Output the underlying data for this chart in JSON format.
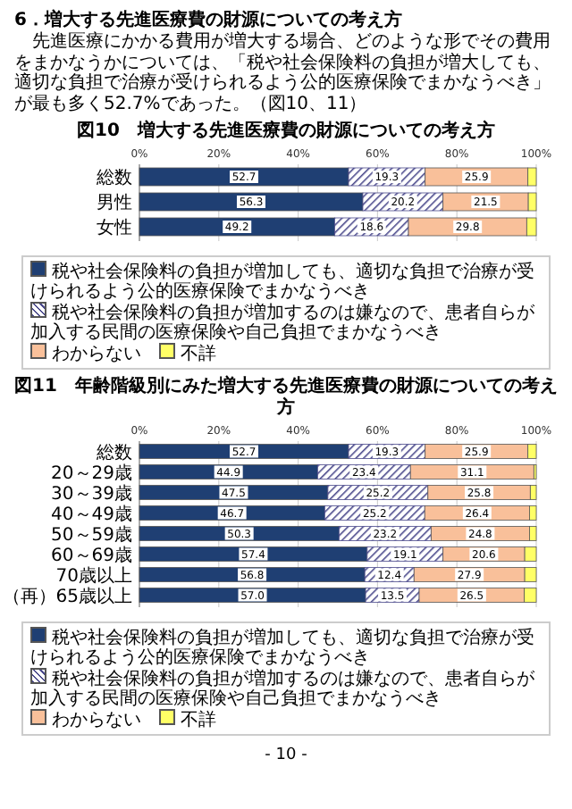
{
  "chart_data": [
    {
      "type": "other",
      "title": "6．増大する先進医療費の財源についての考え方",
      "annotations": [
        "先進医療にかかる費用が増大する場合、どのような形でその費用をまかなうかについては、「税や社会保険料の負担が増大しても、適切な負担で治療が受けられるよう公的医療保険でまかなうべき」が最も多く52.7%であった。（図10、11）"
      ]
    },
    {
      "type": "bar",
      "orientation": "horizontal",
      "stacked": true,
      "title": "図10　増大する先進医療費の財源についての考え方",
      "categories": [
        "総数",
        "男性",
        "女性"
      ],
      "xlim": [
        0,
        100
      ],
      "xticks": [
        {
          "value": 0,
          "label": "0%"
        },
        {
          "value": 20,
          "label": "20%"
        },
        {
          "value": 40,
          "label": "40%"
        },
        {
          "value": 60,
          "label": "60%"
        },
        {
          "value": 80,
          "label": "80%"
        },
        {
          "value": 100,
          "label": "100%"
        }
      ],
      "grid": "x",
      "legend": "bottom",
      "series": [
        {
          "name": "税や社会保険料の負担が増加しても、適切な負担で治療が受けられるよう公的医療保険でまかなうべき",
          "color": "#1f3f73",
          "values": [
            52.7,
            56.3,
            49.2
          ],
          "value_labels": [
            "52.7",
            "56.3",
            "49.2"
          ]
        },
        {
          "name": "税や社会保険料の負担が増加するのは嫌なので、患者自らが加入する民間の医療保険や自己負担でまかなうべき",
          "color": "#4b4a8c",
          "values": [
            19.3,
            20.2,
            18.6
          ],
          "value_labels": [
            "19.3",
            "20.2",
            "18.6"
          ]
        },
        {
          "name": "わからない",
          "color": "#f9c09a",
          "values": [
            25.9,
            21.5,
            29.8
          ],
          "value_labels": [
            "25.9",
            "21.5",
            "29.8"
          ]
        },
        {
          "name": "不詳",
          "color": "#ffff66",
          "values": [
            2.1,
            2.0,
            2.4
          ]
        }
      ]
    },
    {
      "type": "bar",
      "orientation": "horizontal",
      "stacked": true,
      "title": "図11　年齢階級別にみた増大する先進医療費の財源についての考え方",
      "categories": [
        "総数",
        "20～29歳",
        "30～39歳",
        "40～49歳",
        "50～59歳",
        "60～69歳",
        "70歳以上",
        "（再）65歳以上"
      ],
      "xlim": [
        0,
        100
      ],
      "xticks": [
        {
          "value": 0,
          "label": "0%"
        },
        {
          "value": 20,
          "label": "20%"
        },
        {
          "value": 40,
          "label": "40%"
        },
        {
          "value": 60,
          "label": "60%"
        },
        {
          "value": 80,
          "label": "80%"
        },
        {
          "value": 100,
          "label": "100%"
        }
      ],
      "grid": "x",
      "legend": "bottom",
      "annotations": [
        "- 10 -"
      ],
      "series": [
        {
          "name": "税や社会保険料の負担が増加しても、適切な負担で治療が受けられるよう公的医療保険でまかなうべき",
          "color": "#1f3f73",
          "values": [
            52.7,
            44.9,
            47.5,
            46.7,
            50.3,
            57.4,
            56.8,
            57.0
          ],
          "value_labels": [
            "52.7",
            "44.9",
            "47.5",
            "46.7",
            "50.3",
            "57.4",
            "56.8",
            "57.0"
          ]
        },
        {
          "name": "税や社会保険料の負担が増加するのは嫌なので、患者自らが加入する民間の医療保険や自己負担でまかなうべき",
          "color": "#4b4a8c",
          "values": [
            19.3,
            23.4,
            25.2,
            25.2,
            23.2,
            19.1,
            12.4,
            13.5
          ],
          "value_labels": [
            "19.3",
            "23.4",
            "25.2",
            "25.2",
            "23.2",
            "19.1",
            "12.4",
            "13.5"
          ]
        },
        {
          "name": "わからない",
          "color": "#f9c09a",
          "values": [
            25.9,
            31.1,
            25.8,
            26.4,
            24.8,
            20.6,
            27.9,
            26.5
          ],
          "value_labels": [
            "25.9",
            "31.1",
            "25.8",
            "26.4",
            "24.8",
            "20.6",
            "27.9",
            "26.5"
          ]
        },
        {
          "name": "不詳",
          "color": "#ffff66",
          "values": [
            2.1,
            0.6,
            1.5,
            1.7,
            1.7,
            2.9,
            2.9,
            3.0
          ]
        }
      ]
    }
  ]
}
